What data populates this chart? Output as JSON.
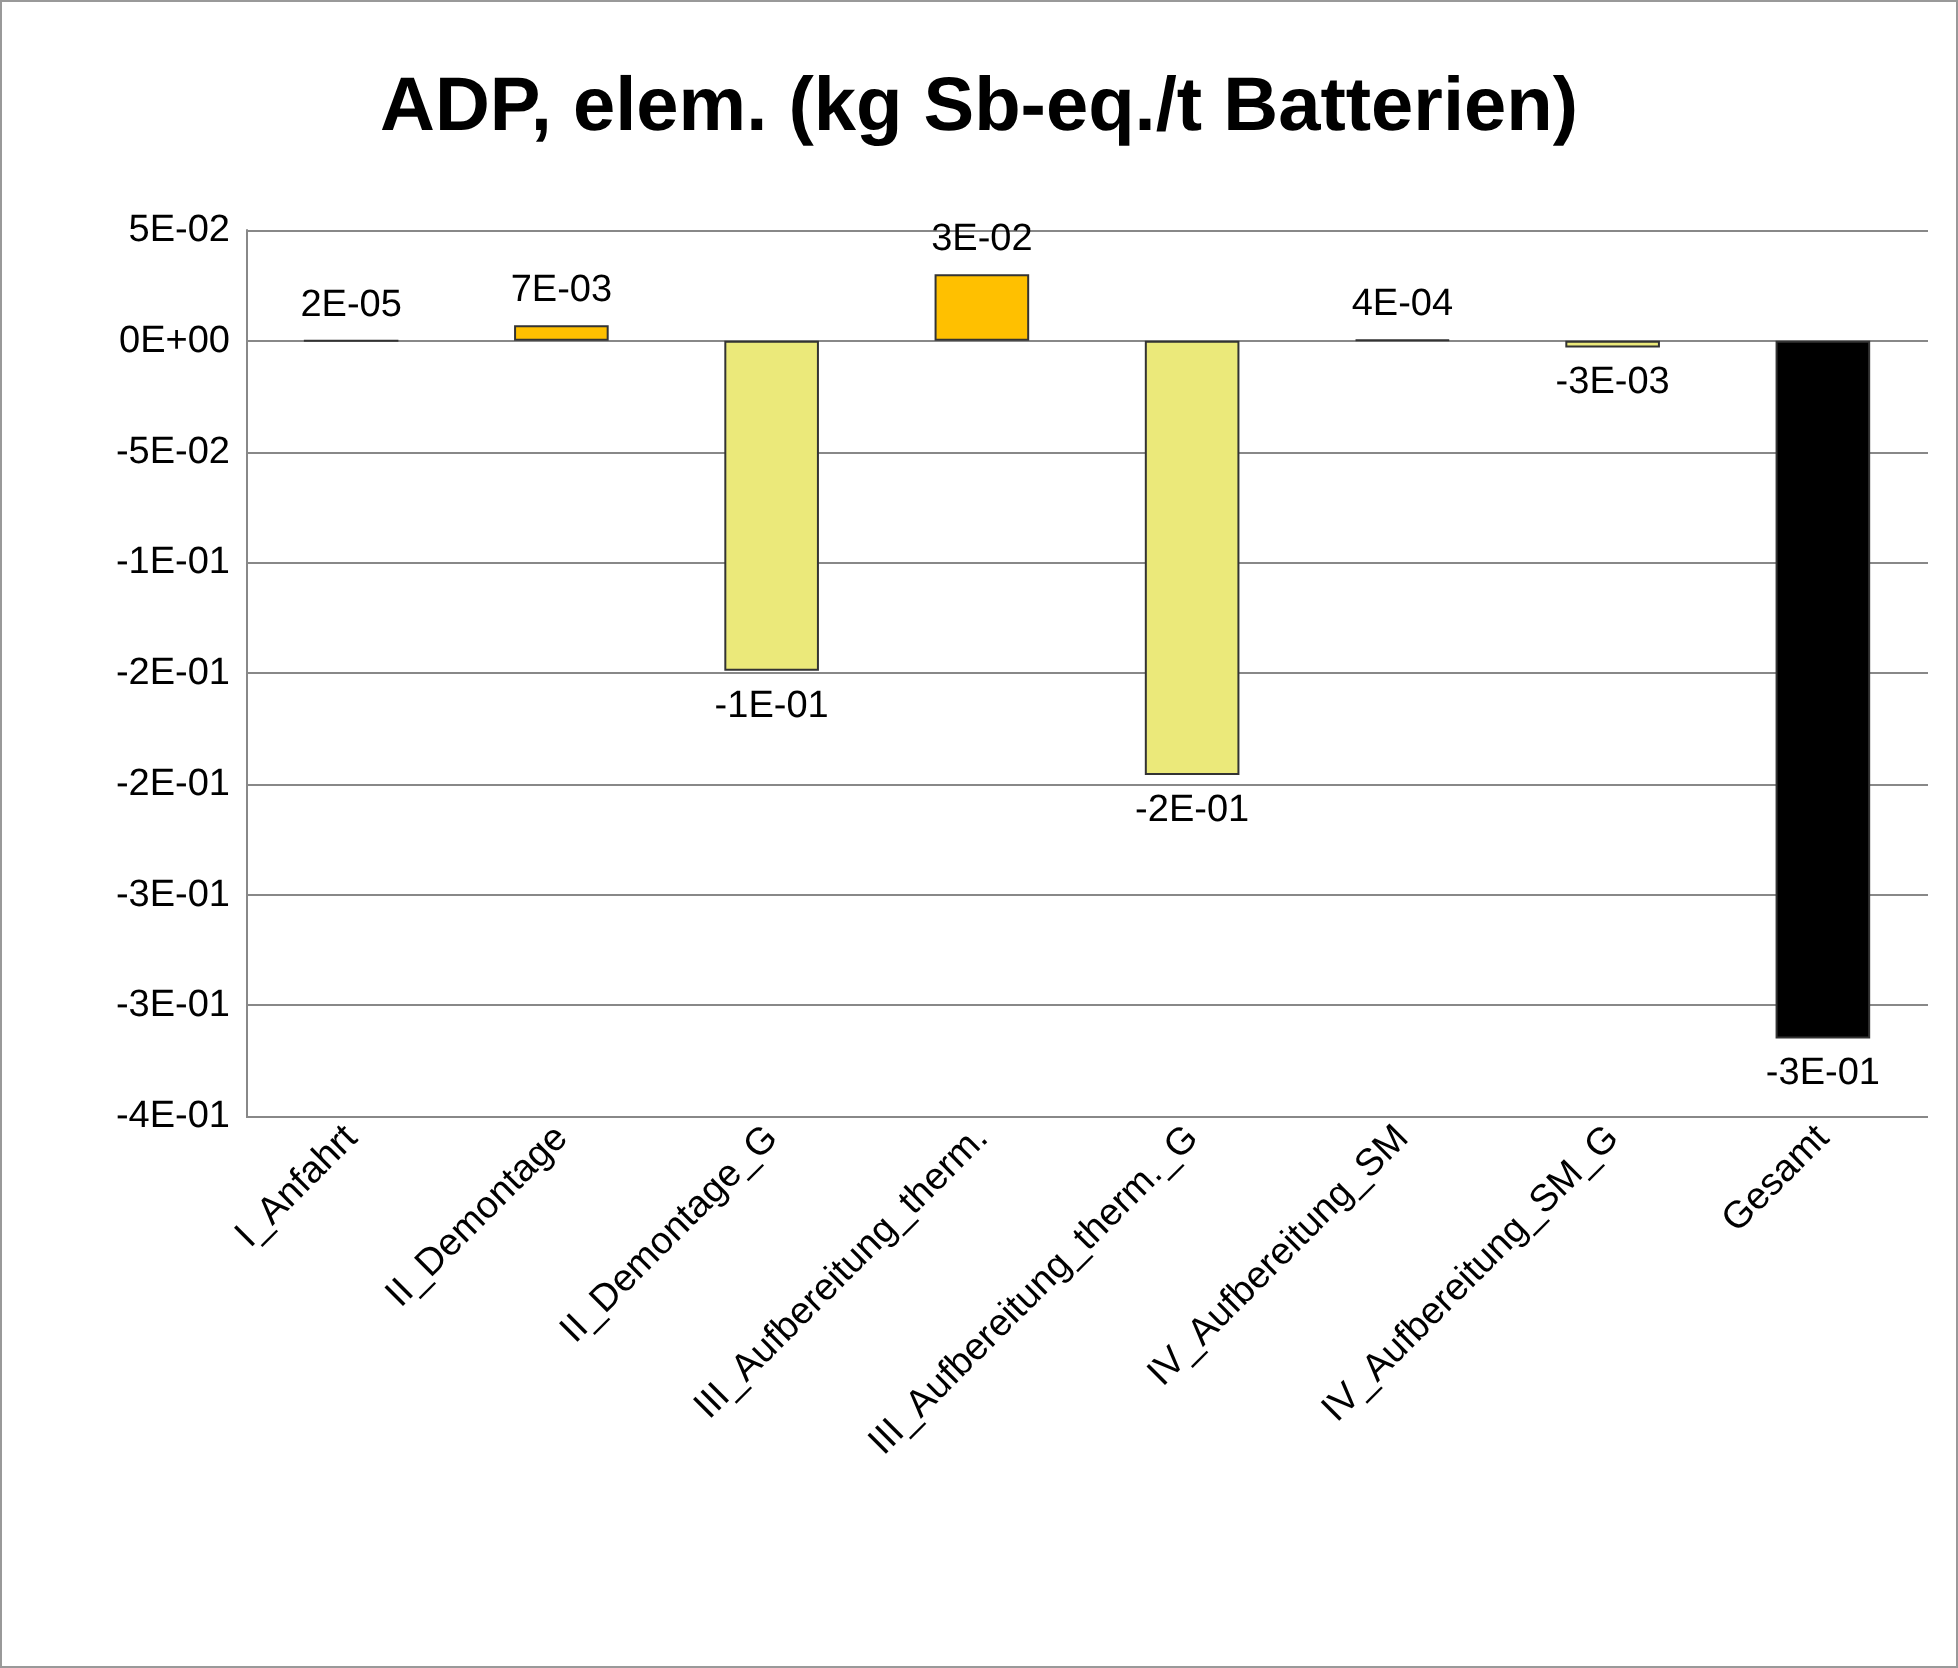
{
  "chart_data": {
    "type": "bar",
    "title": "ADP, elem. (kg Sb-eq./t Batterien)",
    "categories": [
      "I_Anfahrt",
      "II_Demontage",
      "II_Demontage_G",
      "III_Aufbereitung_therm.",
      "III_Aufbereitung_therm._G",
      "IV_Aufbereitung_SM",
      "IV_Aufbereitung_SM_G",
      "Gesamt"
    ],
    "values": [
      2e-05,
      0.007,
      -0.149,
      0.03,
      -0.196,
      0.0004,
      -0.003,
      -0.315
    ],
    "colors": [
      "#333333",
      "#ffc000",
      "#ebe97a",
      "#ffc000",
      "#ebe97a",
      "#333333",
      "#ebe97a",
      "#000000"
    ],
    "value_labels": [
      "2E-05",
      "7E-03",
      "-1E-01",
      "3E-02",
      "-2E-01",
      "4E-04",
      "-3E-03",
      "-3E-01"
    ],
    "ylim": [
      -0.35,
      0.05
    ],
    "yticks": [
      {
        "value": 0.05,
        "label": "5E-02"
      },
      {
        "value": 0,
        "label": "0E+00"
      },
      {
        "value": -0.05,
        "label": "-5E-02"
      },
      {
        "value": -0.1,
        "label": "-1E-01"
      },
      {
        "value": -0.15,
        "label": "-2E-01"
      },
      {
        "value": -0.2,
        "label": "-2E-01"
      },
      {
        "value": -0.25,
        "label": "-3E-01"
      },
      {
        "value": -0.3,
        "label": "-3E-01"
      },
      {
        "value": -0.35,
        "label": "-4E-01"
      }
    ],
    "grid": "y"
  }
}
